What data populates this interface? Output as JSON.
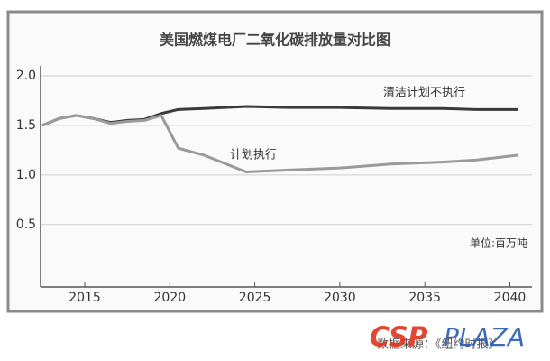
{
  "chart_data": {
    "type": "line",
    "title": "美国燃煤电厂二氧化碳排放量对比图",
    "unit_note": "单位:百万吨",
    "source": "数据来源：《纽约时报》",
    "watermark": [
      "CSP",
      "PLAZA"
    ],
    "x": [
      2012.5,
      2013.5,
      2014.5,
      2015.5,
      2016.5,
      2017.5,
      2018.5,
      2019.5,
      2020.5,
      2022,
      2024.5,
      2027,
      2030,
      2033,
      2036,
      2038,
      2040.5
    ],
    "series": [
      {
        "name": "清洁计划不执行",
        "color": "#3a3a3a",
        "values": [
          1.5,
          1.57,
          1.6,
          1.57,
          1.53,
          1.55,
          1.56,
          1.62,
          1.66,
          1.67,
          1.69,
          1.68,
          1.68,
          1.67,
          1.67,
          1.66,
          1.66
        ]
      },
      {
        "name": "计划执行",
        "color": "#9a9a9a",
        "values": [
          1.5,
          1.57,
          1.6,
          1.57,
          1.52,
          1.54,
          1.55,
          1.6,
          1.27,
          1.2,
          1.03,
          1.05,
          1.07,
          1.11,
          1.13,
          1.15,
          1.2
        ]
      }
    ],
    "xlim": [
      2012.4,
      2041.3
    ],
    "xticks": [
      2015,
      2020,
      2025,
      2030,
      2035,
      2040
    ],
    "ylim": [
      -0.13,
      2.1
    ],
    "yticks": [
      {
        "value": 2.0,
        "label": "2.0"
      },
      1.5,
      {
        "value": 1.0,
        "label": "1.0"
      },
      0.5
    ],
    "grid": true
  }
}
